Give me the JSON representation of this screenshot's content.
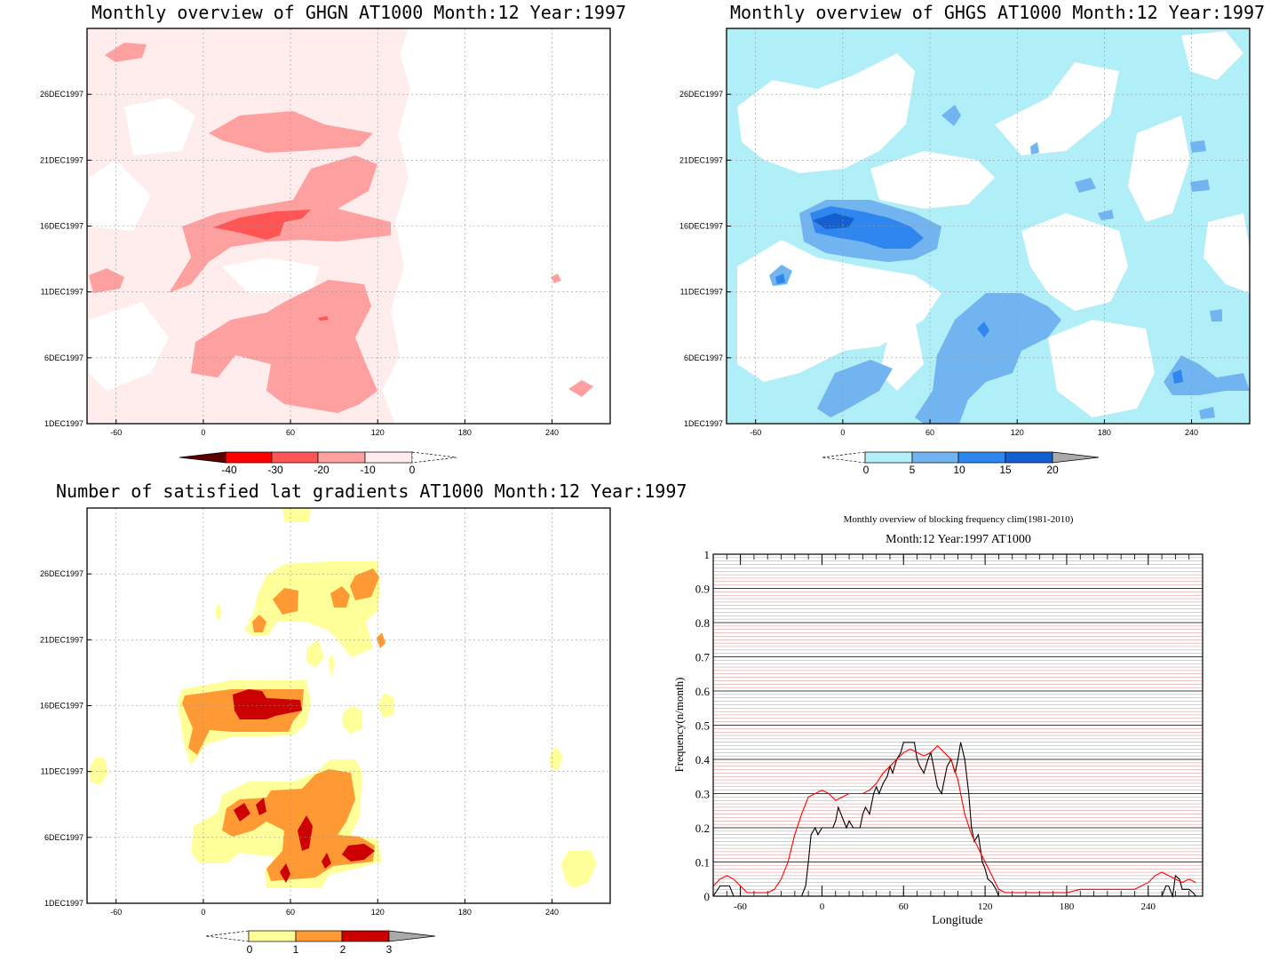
{
  "panels": {
    "ghgn_title": "Monthly overview of GHGN AT1000 Month:12 Year:1997",
    "ghgs_title": "Monthly overview of GHGS AT1000 Month:12 Year:1997",
    "lat_title": "Number of satisfied lat gradients AT1000 Month:12 Year:1997",
    "freq_title1": "Monthly overview of blocking frequency clim(1981-2010)",
    "freq_title2": "Month:12 Year:1997  AT1000"
  },
  "chart_data": [
    {
      "type": "heatmap",
      "title": "Monthly overview of GHGN AT1000 Month:12 Year:1997",
      "x_ticks": [
        "-60",
        "0",
        "60",
        "120",
        "180",
        "240"
      ],
      "y_ticks": [
        "1DEC1997",
        "6DEC1997",
        "11DEC1997",
        "16DEC1997",
        "21DEC1997",
        "26DEC1997"
      ],
      "colorbar": {
        "levels": [
          "-40",
          "-30",
          "-20",
          "-10",
          "0"
        ],
        "colors": [
          "#5a0000",
          "#ff0000",
          "#ff5555",
          "#ffa0a0",
          "#ffecec",
          "#ffffff"
        ]
      },
      "regions": [
        {
          "level": 4,
          "lon": [
            -40,
            70
          ],
          "day": [
            1,
            12
          ]
        },
        {
          "level": 3,
          "lon": [
            -10,
            130
          ],
          "day": [
            14,
            22
          ]
        },
        {
          "level": 2,
          "lon": [
            10,
            60
          ],
          "day": [
            16,
            17
          ]
        },
        {
          "level": 3,
          "lon": [
            -5,
            115
          ],
          "day": [
            2,
            11
          ]
        }
      ]
    },
    {
      "type": "heatmap",
      "title": "Monthly overview of GHGS AT1000 Month:12 Year:1997",
      "x_ticks": [
        "-60",
        "0",
        "60",
        "120",
        "180",
        "240"
      ],
      "y_ticks": [
        "1DEC1997",
        "6DEC1997",
        "11DEC1997",
        "16DEC1997",
        "21DEC1997",
        "26DEC1997"
      ],
      "colorbar": {
        "levels": [
          "0",
          "5",
          "10",
          "15",
          "20"
        ],
        "colors": [
          "#ffffff",
          "#b0eef8",
          "#72b4f0",
          "#2e86ee",
          "#1560d0",
          "#aaaaaa"
        ]
      },
      "regions": [
        {
          "level": 2,
          "lon": [
            -30,
            60
          ],
          "day": [
            13,
            17
          ]
        },
        {
          "level": 3,
          "lon": [
            -20,
            45
          ],
          "day": [
            14,
            16
          ]
        },
        {
          "level": 2,
          "lon": [
            60,
            130
          ],
          "day": [
            1,
            10
          ]
        }
      ]
    },
    {
      "type": "heatmap",
      "title": "Number of satisfied lat gradients AT1000 Month:12 Year:1997",
      "x_ticks": [
        "-60",
        "0",
        "60",
        "120",
        "180",
        "240"
      ],
      "y_ticks": [
        "1DEC1997",
        "6DEC1997",
        "11DEC1997",
        "16DEC1997",
        "21DEC1997",
        "26DEC1997"
      ],
      "colorbar": {
        "levels": [
          "0",
          "1",
          "2",
          "3"
        ],
        "colors": [
          "#ffffff",
          "#ffff99",
          "#ff9933",
          "#cc0000",
          "#aaaaaa"
        ]
      },
      "regions": [
        {
          "level": 2,
          "lon": [
            -15,
            70
          ],
          "day": [
            13,
            17
          ]
        },
        {
          "level": 3,
          "lon": [
            20,
            65
          ],
          "day": [
            15,
            16
          ]
        },
        {
          "level": 2,
          "lon": [
            10,
            110
          ],
          "day": [
            2,
            10
          ]
        },
        {
          "level": 1,
          "lon": [
            35,
            120
          ],
          "day": [
            22,
            27
          ]
        }
      ]
    },
    {
      "type": "line",
      "title": "Monthly overview of blocking frequency clim(1981-2010)",
      "subtitle": "Month:12 Year:1997  AT1000",
      "xlabel": "Longitude",
      "ylabel": "Frequency(n/month)",
      "x_ticks": [
        "-60",
        "0",
        "60",
        "120",
        "180",
        "240"
      ],
      "y_ticks": [
        "0",
        "0.1",
        "0.2",
        "0.3",
        "0.4",
        "0.5",
        "0.6",
        "0.7",
        "0.8",
        "0.9",
        "1"
      ],
      "xlim": [
        -80,
        280
      ],
      "ylim": [
        0,
        1
      ],
      "series": [
        {
          "color": "#000000",
          "x": [
            -80,
            -75,
            -72,
            -68,
            -65,
            -15,
            -12,
            -10,
            -8,
            -5,
            -3,
            0,
            3,
            5,
            8,
            10,
            12,
            15,
            18,
            20,
            23,
            25,
            28,
            30,
            32,
            35,
            38,
            40,
            42,
            45,
            48,
            50,
            52,
            55,
            58,
            60,
            63,
            65,
            68,
            70,
            72,
            75,
            78,
            80,
            82,
            85,
            88,
            90,
            92,
            95,
            98,
            100,
            102,
            105,
            108,
            110,
            112,
            115,
            118,
            120,
            122,
            125,
            128,
            130,
            250,
            253,
            255,
            258,
            260,
            263,
            265,
            268,
            270,
            273,
            275
          ],
          "y": [
            0,
            0.03,
            0.03,
            0.03,
            0,
            0,
            0.03,
            0.1,
            0.18,
            0.2,
            0.18,
            0.2,
            0.2,
            0.2,
            0.2,
            0.22,
            0.26,
            0.23,
            0.2,
            0.22,
            0.2,
            0.2,
            0.2,
            0.24,
            0.26,
            0.24,
            0.3,
            0.32,
            0.3,
            0.33,
            0.35,
            0.38,
            0.36,
            0.4,
            0.42,
            0.45,
            0.45,
            0.45,
            0.45,
            0.4,
            0.38,
            0.36,
            0.4,
            0.42,
            0.38,
            0.32,
            0.3,
            0.34,
            0.38,
            0.4,
            0.36,
            0.4,
            0.45,
            0.4,
            0.3,
            0.2,
            0.16,
            0.18,
            0.1,
            0.08,
            0.05,
            0.04,
            0.02,
            0,
            0,
            0.03,
            0.03,
            0,
            0.06,
            0.05,
            0.02,
            0.02,
            0.02,
            0.01,
            0
          ],
          "name": ""
        },
        {
          "color": "#ff0000",
          "x": [
            -80,
            -75,
            -70,
            -65,
            -60,
            -55,
            -50,
            -45,
            -40,
            -35,
            -30,
            -25,
            -20,
            -15,
            -10,
            -5,
            0,
            5,
            10,
            15,
            20,
            25,
            30,
            35,
            40,
            45,
            50,
            55,
            60,
            65,
            70,
            75,
            80,
            85,
            90,
            95,
            100,
            105,
            110,
            115,
            120,
            125,
            130,
            135,
            140,
            150,
            160,
            170,
            180,
            190,
            200,
            210,
            220,
            230,
            240,
            245,
            250,
            255,
            260,
            265,
            270,
            275
          ],
          "y": [
            0.03,
            0.05,
            0.06,
            0.05,
            0.03,
            0.01,
            0.01,
            0.01,
            0.01,
            0.02,
            0.05,
            0.1,
            0.18,
            0.24,
            0.29,
            0.3,
            0.31,
            0.3,
            0.28,
            0.29,
            0.3,
            0.3,
            0.3,
            0.31,
            0.33,
            0.36,
            0.38,
            0.4,
            0.42,
            0.43,
            0.42,
            0.41,
            0.42,
            0.44,
            0.42,
            0.4,
            0.34,
            0.24,
            0.18,
            0.14,
            0.1,
            0.06,
            0.02,
            0.01,
            0.01,
            0.01,
            0.01,
            0.01,
            0.01,
            0.02,
            0.02,
            0.02,
            0.02,
            0.02,
            0.04,
            0.06,
            0.07,
            0.06,
            0.05,
            0.04,
            0.05,
            0.04
          ],
          "name": ""
        }
      ]
    }
  ]
}
